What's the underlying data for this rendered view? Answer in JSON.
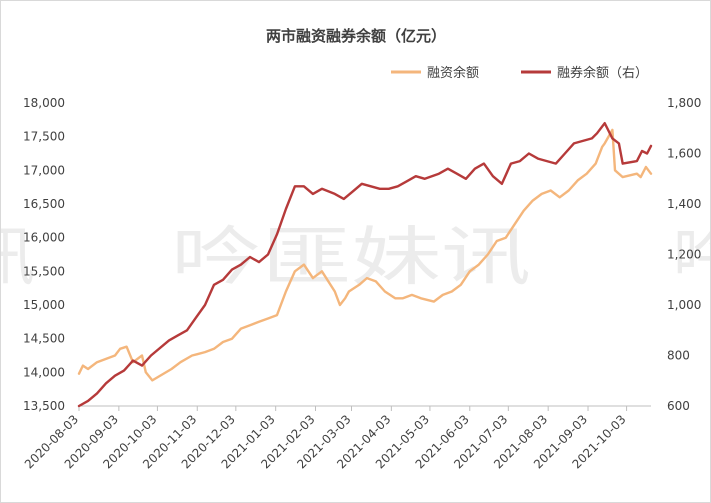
{
  "watermark": {
    "text": "吟匪妹讯",
    "left_fragment": "讯",
    "right_fragment": "吟"
  },
  "colors": {
    "margin_series": "#f4b67c",
    "short_series": "#b63a3a",
    "axis": "#bfbfbf",
    "text": "#404040"
  },
  "chart_data": {
    "type": "line",
    "title": "两市融资融券余额（亿元）",
    "legend_position": "top-right",
    "grid": false,
    "xlabel": "",
    "ylabel": "",
    "x_range": [
      "2020-08-03",
      "2021-10-22"
    ],
    "x_ticks": [
      "2020-08-03",
      "2020-09-03",
      "2020-10-03",
      "2020-11-03",
      "2020-12-03",
      "2021-01-03",
      "2021-02-03",
      "2021-03-03",
      "2021-04-03",
      "2021-05-03",
      "2021-06-03",
      "2021-07-03",
      "2021-08-03",
      "2021-09-03",
      "2021-10-03"
    ],
    "y_left": {
      "min": 13500,
      "max": 18000,
      "ticks": [
        13500,
        14000,
        14500,
        15000,
        15500,
        16000,
        16500,
        17000,
        17500,
        18000
      ],
      "tick_labels": [
        "13,500",
        "14,000",
        "14,500",
        "15,000",
        "15,500",
        "16,000",
        "16,500",
        "17,000",
        "17,500",
        "18,000"
      ]
    },
    "y_right": {
      "min": 600,
      "max": 1800,
      "ticks": [
        600,
        800,
        1000,
        1200,
        1400,
        1600,
        1800
      ],
      "tick_labels": [
        "600",
        "800",
        "1,000",
        "1,200",
        "1,400",
        "1,600",
        "1,800"
      ]
    },
    "series": [
      {
        "name": "融资余额",
        "axis": "left",
        "x": [
          "2020-08-03",
          "2020-08-06",
          "2020-08-10",
          "2020-08-17",
          "2020-08-24",
          "2020-08-31",
          "2020-09-04",
          "2020-09-09",
          "2020-09-14",
          "2020-09-21",
          "2020-09-24",
          "2020-09-29",
          "2020-10-14",
          "2020-10-21",
          "2020-10-30",
          "2020-11-03",
          "2020-11-09",
          "2020-11-16",
          "2020-11-23",
          "2020-11-30",
          "2020-12-07",
          "2020-12-14",
          "2020-12-21",
          "2020-12-28",
          "2021-01-04",
          "2021-01-11",
          "2021-01-18",
          "2021-01-25",
          "2021-02-01",
          "2021-02-08",
          "2021-02-18",
          "2021-02-22",
          "2021-02-26",
          "2021-03-01",
          "2021-03-09",
          "2021-03-15",
          "2021-03-22",
          "2021-03-29",
          "2021-04-06",
          "2021-04-12",
          "2021-04-19",
          "2021-04-26",
          "2021-05-06",
          "2021-05-13",
          "2021-05-20",
          "2021-05-27",
          "2021-06-03",
          "2021-06-10",
          "2021-06-17",
          "2021-06-24",
          "2021-07-01",
          "2021-07-08",
          "2021-07-15",
          "2021-07-22",
          "2021-07-29",
          "2021-08-05",
          "2021-08-12",
          "2021-08-19",
          "2021-08-26",
          "2021-09-02",
          "2021-09-09",
          "2021-09-14",
          "2021-09-16",
          "2021-09-22",
          "2021-09-24",
          "2021-09-30",
          "2021-10-11",
          "2021-10-14",
          "2021-10-18",
          "2021-10-20",
          "2021-10-22"
        ],
        "values": [
          13980,
          14100,
          14050,
          14150,
          14200,
          14250,
          14350,
          14380,
          14150,
          14250,
          14000,
          13880,
          14050,
          14150,
          14250,
          14270,
          14300,
          14350,
          14450,
          14500,
          14650,
          14700,
          14750,
          14800,
          14850,
          15200,
          15500,
          15600,
          15400,
          15500,
          15200,
          15000,
          15100,
          15200,
          15300,
          15400,
          15350,
          15200,
          15100,
          15100,
          15150,
          15100,
          15050,
          15150,
          15200,
          15300,
          15500,
          15600,
          15750,
          15950,
          16000,
          16200,
          16400,
          16550,
          16650,
          16700,
          16600,
          16700,
          16850,
          16950,
          17100,
          17350,
          17400,
          17600,
          17000,
          16900,
          16950,
          16900,
          17050,
          17000,
          16950
        ]
      },
      {
        "name": "融券余额（右）",
        "axis": "right",
        "x": [
          "2020-08-03",
          "2020-08-10",
          "2020-08-17",
          "2020-08-24",
          "2020-08-31",
          "2020-09-07",
          "2020-09-14",
          "2020-09-21",
          "2020-09-28",
          "2020-10-12",
          "2020-10-19",
          "2020-10-26",
          "2020-11-02",
          "2020-11-09",
          "2020-11-16",
          "2020-11-23",
          "2020-11-30",
          "2020-12-07",
          "2020-12-14",
          "2020-12-21",
          "2020-12-28",
          "2021-01-04",
          "2021-01-11",
          "2021-01-18",
          "2021-01-25",
          "2021-02-01",
          "2021-02-08",
          "2021-02-18",
          "2021-02-25",
          "2021-03-04",
          "2021-03-11",
          "2021-03-18",
          "2021-03-25",
          "2021-04-01",
          "2021-04-08",
          "2021-04-15",
          "2021-04-22",
          "2021-04-29",
          "2021-05-10",
          "2021-05-17",
          "2021-05-24",
          "2021-05-31",
          "2021-06-07",
          "2021-06-14",
          "2021-06-21",
          "2021-06-28",
          "2021-07-05",
          "2021-07-12",
          "2021-07-19",
          "2021-07-26",
          "2021-08-02",
          "2021-08-09",
          "2021-08-16",
          "2021-08-23",
          "2021-08-30",
          "2021-09-06",
          "2021-09-10",
          "2021-09-16",
          "2021-09-22",
          "2021-09-27",
          "2021-09-30",
          "2021-10-11",
          "2021-10-15",
          "2021-10-19",
          "2021-10-22"
        ],
        "values": [
          600,
          620,
          650,
          690,
          720,
          740,
          780,
          760,
          800,
          860,
          880,
          900,
          950,
          1000,
          1080,
          1100,
          1140,
          1160,
          1190,
          1170,
          1200,
          1280,
          1380,
          1470,
          1470,
          1440,
          1460,
          1440,
          1420,
          1450,
          1480,
          1470,
          1460,
          1460,
          1470,
          1490,
          1510,
          1500,
          1520,
          1540,
          1520,
          1500,
          1540,
          1560,
          1510,
          1480,
          1560,
          1570,
          1600,
          1580,
          1570,
          1560,
          1600,
          1640,
          1650,
          1660,
          1680,
          1720,
          1660,
          1640,
          1560,
          1570,
          1610,
          1600,
          1630
        ]
      }
    ]
  }
}
